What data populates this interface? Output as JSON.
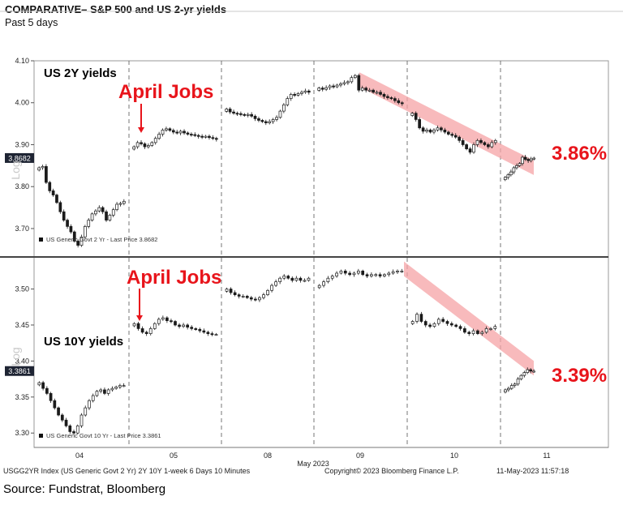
{
  "header": {
    "title": "COMPARATIVE– S&P 500 and US 2-yr yields",
    "subtitle": "Past 5 days"
  },
  "footer": {
    "left": "USGG2YR Index (US Generic Govt 2 Yr) 2Y 10Y 1-week 6 Days 10 Minutes",
    "middle": "Copyright© 2023 Bloomberg Finance L.P.",
    "right": "11-May-2023 11:57:18"
  },
  "source": "Source: Fundstrat, Bloomberg",
  "colors": {
    "annotation_red": "#e8141b",
    "trend_band": "#f5a3a6",
    "candle": "#1a1a1a",
    "price_tag_bg": "#1e2433"
  },
  "chart_data": [
    {
      "type": "candlestick",
      "title": "US 2Y yields",
      "axis_label": "Log",
      "legend": "US Generic Govt 2 Yr - Last Price 3.8682",
      "last_price_tag": "3.8682",
      "callout": "3.86%",
      "annotation": "April Jobs",
      "ylim": [
        3.64,
        4.1
      ],
      "y_ticks": [
        3.7,
        3.8,
        3.9,
        4.0,
        4.1
      ],
      "y_tick_labels": [
        "3.70",
        "3.80",
        "3.90",
        "4.00",
        "4.10"
      ],
      "x_categories": [
        "04",
        "05",
        "08",
        "09",
        "10",
        "11"
      ],
      "x_month_label": "May 2023",
      "day_sessions": [
        [
          3.845,
          3.848,
          3.81,
          3.79,
          3.78,
          3.762,
          3.74,
          3.72,
          3.705,
          3.692,
          3.67,
          3.66,
          3.68,
          3.705,
          3.72,
          3.735,
          3.742,
          3.75,
          3.74,
          3.72,
          3.732,
          3.745,
          3.758,
          3.76,
          3.765
        ],
        [
          3.895,
          3.905,
          3.902,
          3.895,
          3.898,
          3.905,
          3.915,
          3.925,
          3.935,
          3.938,
          3.934,
          3.93,
          3.928,
          3.932,
          3.928,
          3.925,
          3.924,
          3.922,
          3.92,
          3.918,
          3.92,
          3.917,
          3.915,
          3.913
        ],
        [
          3.985,
          3.978,
          3.975,
          3.974,
          3.972,
          3.97,
          3.972,
          3.968,
          3.962,
          3.958,
          3.955,
          3.952,
          3.955,
          3.96,
          3.965,
          3.98,
          3.995,
          4.01,
          4.02,
          4.018,
          4.022,
          4.025,
          4.028,
          4.025
        ],
        [
          4.035,
          4.032,
          4.036,
          4.04,
          4.038,
          4.042,
          4.045,
          4.048,
          4.05,
          4.06,
          4.065,
          4.03,
          4.035,
          4.03,
          4.03,
          4.025,
          4.025,
          4.02,
          4.015,
          4.012,
          4.01,
          4.005,
          4.0,
          3.998
        ],
        [
          3.975,
          3.96,
          3.94,
          3.932,
          3.935,
          3.93,
          3.935,
          3.94,
          3.935,
          3.93,
          3.925,
          3.922,
          3.918,
          3.91,
          3.9,
          3.89,
          3.882,
          3.9,
          3.91,
          3.905,
          3.9,
          3.895,
          3.905,
          3.91
        ],
        [
          3.822,
          3.828,
          3.835,
          3.845,
          3.85,
          3.855,
          3.87,
          3.865,
          3.862,
          3.866,
          3.868
        ]
      ],
      "trend_band": {
        "start": 4.055,
        "end": 3.845
      }
    },
    {
      "type": "candlestick",
      "title": "US 10Y yields",
      "axis_label": "Log",
      "legend": "US Generic Govt 10 Yr - Last Price 3.3861",
      "last_price_tag": "3.3861",
      "callout": "3.39%",
      "annotation": "April Jobs",
      "ylim": [
        3.28,
        3.54
      ],
      "y_ticks": [
        3.3,
        3.35,
        3.4,
        3.45,
        3.5
      ],
      "y_tick_labels": [
        "3.30",
        "3.35",
        "3.40",
        "3.45",
        "3.50"
      ],
      "x_categories": [
        "04",
        "05",
        "08",
        "09",
        "10",
        "11"
      ],
      "x_month_label": "May 2023",
      "day_sessions": [
        [
          3.37,
          3.362,
          3.355,
          3.345,
          3.335,
          3.325,
          3.318,
          3.31,
          3.302,
          3.3,
          3.31,
          3.325,
          3.335,
          3.345,
          3.352,
          3.358,
          3.36,
          3.355,
          3.36,
          3.362,
          3.364,
          3.366,
          3.366
        ],
        [
          3.452,
          3.445,
          3.44,
          3.438,
          3.445,
          3.452,
          3.458,
          3.46,
          3.456,
          3.455,
          3.45,
          3.448,
          3.45,
          3.447,
          3.445,
          3.444,
          3.442,
          3.44,
          3.438,
          3.437,
          3.437
        ],
        [
          3.5,
          3.495,
          3.492,
          3.49,
          3.49,
          3.488,
          3.486,
          3.485,
          3.488,
          3.492,
          3.498,
          3.505,
          3.51,
          3.515,
          3.518,
          3.515,
          3.512,
          3.515,
          3.512,
          3.512,
          3.515
        ],
        [
          3.505,
          3.51,
          3.515,
          3.518,
          3.522,
          3.525,
          3.522,
          3.52,
          3.522,
          3.525,
          3.52,
          3.518,
          3.52,
          3.52,
          3.518,
          3.52,
          3.522,
          3.524,
          3.525,
          3.525
        ],
        [
          3.455,
          3.465,
          3.455,
          3.45,
          3.448,
          3.452,
          3.458,
          3.455,
          3.452,
          3.45,
          3.448,
          3.445,
          3.44,
          3.438,
          3.442,
          3.438,
          3.44,
          3.445,
          3.445,
          3.448
        ],
        [
          3.36,
          3.362,
          3.366,
          3.368,
          3.375,
          3.38,
          3.384,
          3.388,
          3.386,
          3.386
        ]
      ],
      "trend_band": {
        "start": 3.528,
        "end": 3.39
      }
    }
  ]
}
